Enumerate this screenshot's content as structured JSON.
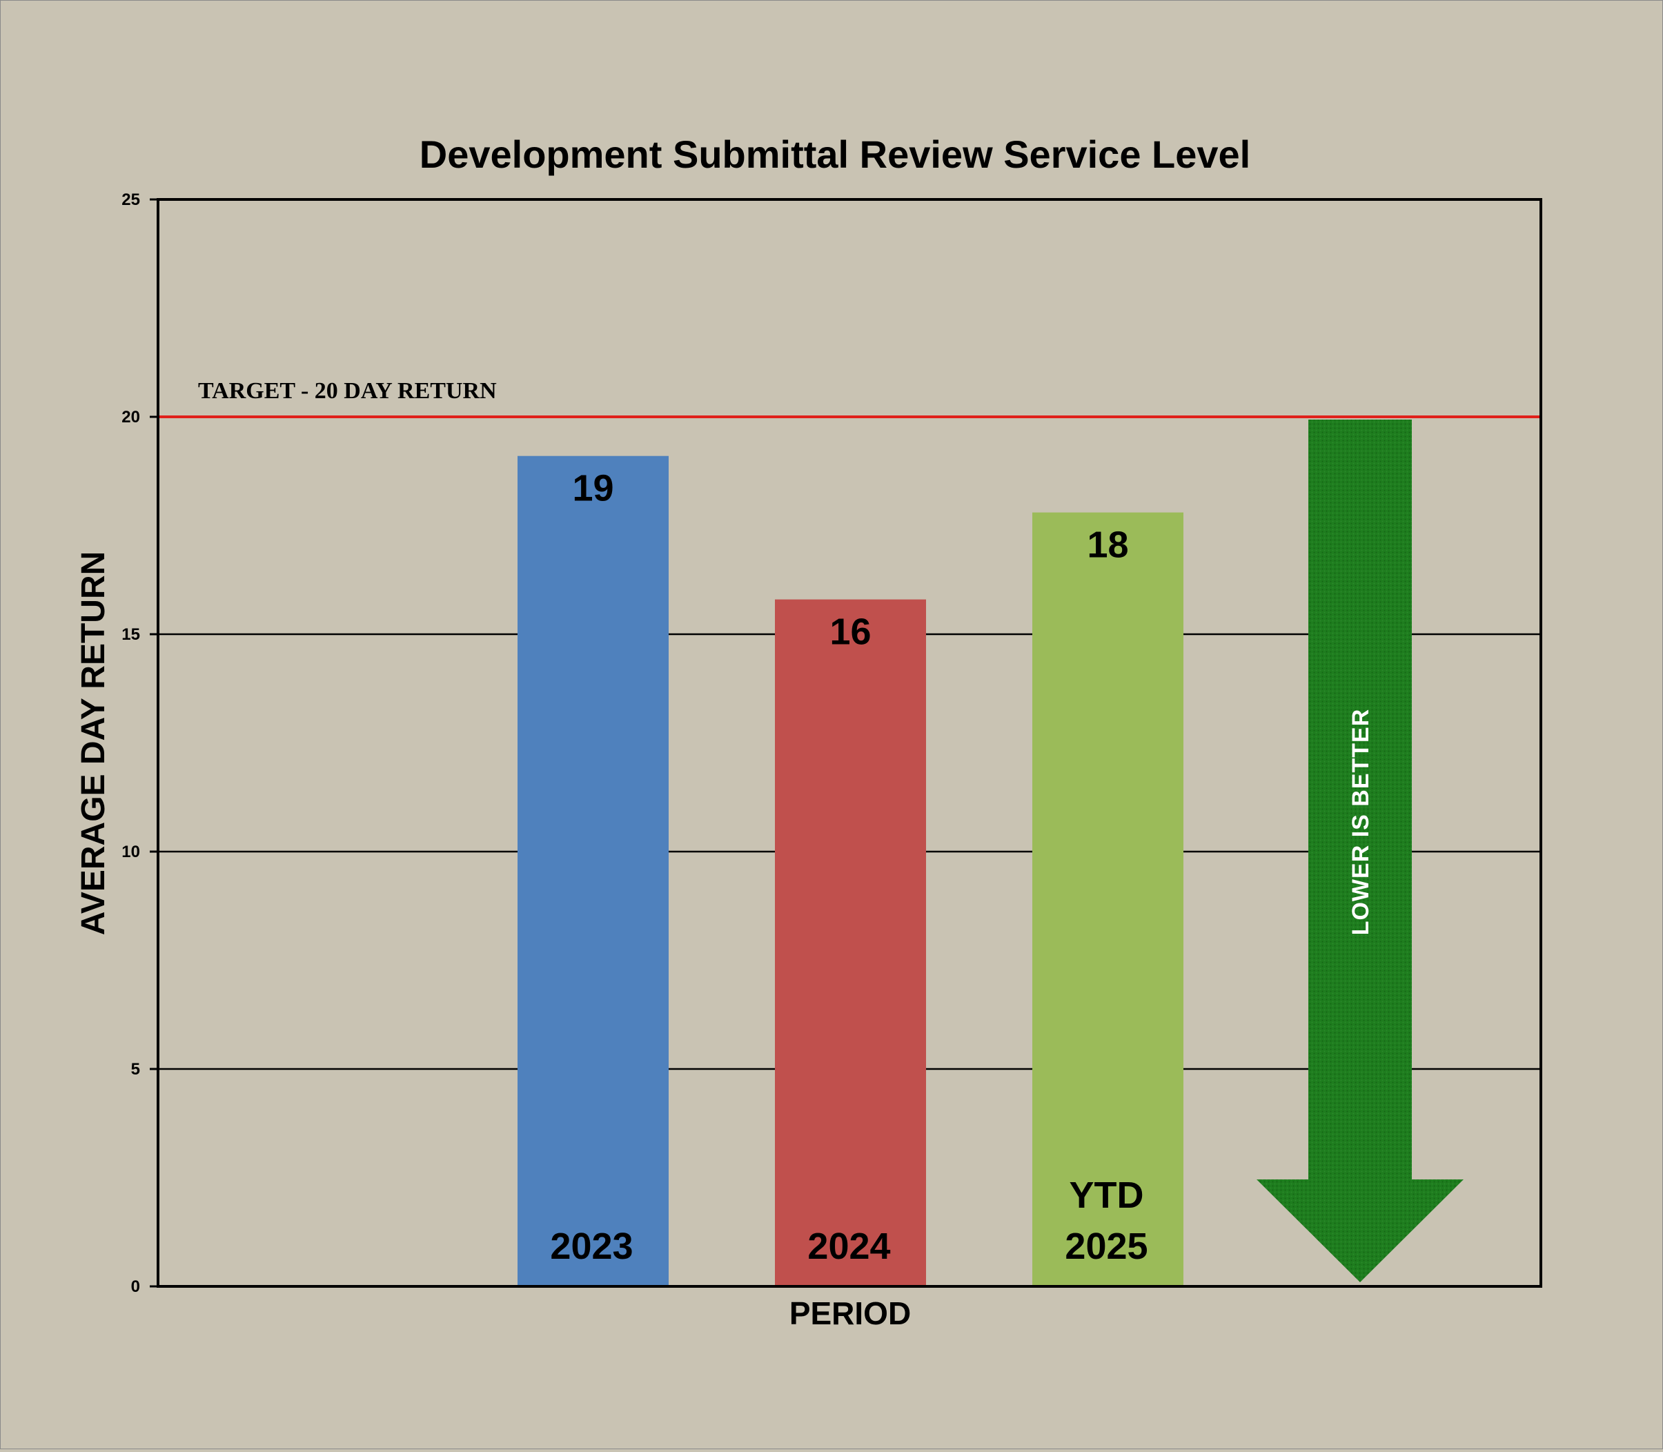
{
  "chart_data": {
    "type": "bar",
    "title": "Development Submittal Review Service Level",
    "xlabel": "PERIOD",
    "ylabel": "AVERAGE DAY RETURN",
    "ylim": [
      0,
      25
    ],
    "yticks": [
      0,
      5,
      10,
      15,
      20,
      25
    ],
    "grid": true,
    "categories": [
      {
        "lines": [
          "2023"
        ]
      },
      {
        "lines": [
          "2024"
        ]
      },
      {
        "lines": [
          "YTD",
          "2025"
        ]
      }
    ],
    "values": [
      19.1,
      15.8,
      17.8
    ],
    "data_labels": [
      "19",
      "16",
      "18"
    ],
    "colors": [
      "#4f81bd",
      "#c0504d",
      "#9bbb59"
    ],
    "target": {
      "value": 20,
      "label": "TARGET - 20 DAY RETURN",
      "color": "#e0201b"
    },
    "annotation": {
      "text": "LOWER IS BETTER",
      "from": 20,
      "to": 0,
      "color": "#1b7a1b"
    }
  }
}
